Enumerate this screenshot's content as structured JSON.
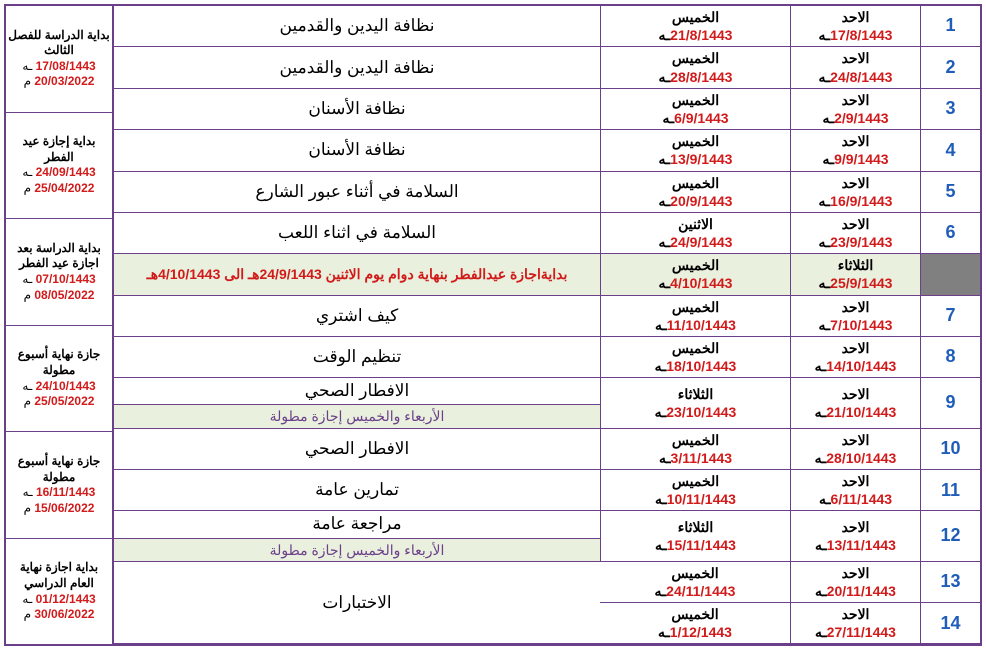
{
  "rows": [
    {
      "n": "1",
      "fromDay": "الاحد",
      "fromDate": "17/8/1443",
      "toDay": "الخميس",
      "toDate": "21/8/1443",
      "subject": "نظافة اليدين والقدمين"
    },
    {
      "n": "2",
      "fromDay": "الاحد",
      "fromDate": "24/8/1443",
      "toDay": "الخميس",
      "toDate": "28/8/1443",
      "subject": "نظافة اليدين والقدمين"
    },
    {
      "n": "3",
      "fromDay": "الاحد",
      "fromDate": "2/9/1443",
      "toDay": "الخميس",
      "toDate": "6/9/1443",
      "subject": "نظافة الأسنان"
    },
    {
      "n": "4",
      "fromDay": "الاحد",
      "fromDate": "9/9/1443",
      "toDay": "الخميس",
      "toDate": "13/9/1443",
      "subject": "نظافة الأسنان"
    },
    {
      "n": "5",
      "fromDay": "الاحد",
      "fromDate": "16/9/1443",
      "toDay": "الخميس",
      "toDate": "20/9/1443",
      "subject": "السلامة في أثناء عبور الشارع"
    },
    {
      "n": "6",
      "fromDay": "الاحد",
      "fromDate": "23/9/1443",
      "toDay": "الاثنين",
      "toDate": "24/9/1443",
      "subject": "السلامة في اثناء اللعب"
    }
  ],
  "holiday": {
    "fromDay": "الثلاثاء",
    "fromDate": "25/9/1443",
    "toDay": "الخميس",
    "toDate": "4/10/1443",
    "text": "بدايةاجازة عيدالفطر بنهاية دوام يوم الاثنين 24/9/1443هـ الى 4/10/1443هـ"
  },
  "rows2": [
    {
      "n": "7",
      "fromDay": "الاحد",
      "fromDate": "7/10/1443",
      "toDay": "الخميس",
      "toDate": "11/10/1443",
      "subject": "كيف اشتري"
    },
    {
      "n": "8",
      "fromDay": "الاحد",
      "fromDate": "14/10/1443",
      "toDay": "الخميس",
      "toDate": "18/10/1443",
      "subject": "تنظيم الوقت"
    }
  ],
  "row9": {
    "n": "9",
    "fromDay": "الاحد",
    "fromDate": "21/10/1443",
    "toDay": "الثلاثاء",
    "toDate": "23/10/1443",
    "subject": "الافطار الصحي",
    "note": "الأربعاء والخميس إجازة مطولة"
  },
  "rows3": [
    {
      "n": "10",
      "fromDay": "الاحد",
      "fromDate": "28/10/1443",
      "toDay": "الخميس",
      "toDate": "3/11/1443",
      "subject": "الافطار الصحي"
    },
    {
      "n": "11",
      "fromDay": "الاحد",
      "fromDate": "6/11/1443",
      "toDay": "الخميس",
      "toDate": "10/11/1443",
      "subject": "تمارين عامة"
    }
  ],
  "row12": {
    "n": "12",
    "fromDay": "الاحد",
    "fromDate": "13/11/1443",
    "toDay": "الثلاثاء",
    "toDate": "15/11/1443",
    "subject": "مراجعة عامة",
    "note": "الأربعاء والخميس إجازة مطولة"
  },
  "rows4": [
    {
      "n": "13",
      "fromDay": "الاحد",
      "fromDate": "20/11/1443",
      "toDay": "الخميس",
      "toDate": "24/11/1443"
    },
    {
      "n": "14",
      "fromDay": "الاحد",
      "fromDate": "27/11/1443",
      "toDay": "الخميس",
      "toDate": "1/12/1443"
    }
  ],
  "examLabel": "الاختبارات",
  "suffix": "ـه",
  "side": [
    {
      "t": "بداية الدراسة للفصل الثالث",
      "d1": "17/08/1443",
      "u1": "ـه",
      "d2": "20/03/2022",
      "u2": "م"
    },
    {
      "t": "بداية إجازة عيد الفطر",
      "d1": "24/09/1443",
      "u1": "ـه",
      "d2": "25/04/2022",
      "u2": "م"
    },
    {
      "t": "بداية الدراسة بعد اجازة عيد الفطر",
      "d1": "07/10/1443",
      "u1": "ـه",
      "d2": "08/05/2022",
      "u2": "م"
    },
    {
      "t": "جازة نهاية أسبوع مطولة",
      "d1": "24/10/1443",
      "u1": "ـه",
      "d2": "25/05/2022",
      "u2": "م"
    },
    {
      "t": "جازة نهاية أسبوع مطولة",
      "d1": "16/11/1443",
      "u1": "ـه",
      "d2": "15/06/2022",
      "u2": "م"
    },
    {
      "t": "بداية اجازة نهاية العام الدراسي",
      "d1": "01/12/1443",
      "u1": "ـه",
      "d2": "30/06/2022",
      "u2": "م"
    }
  ]
}
